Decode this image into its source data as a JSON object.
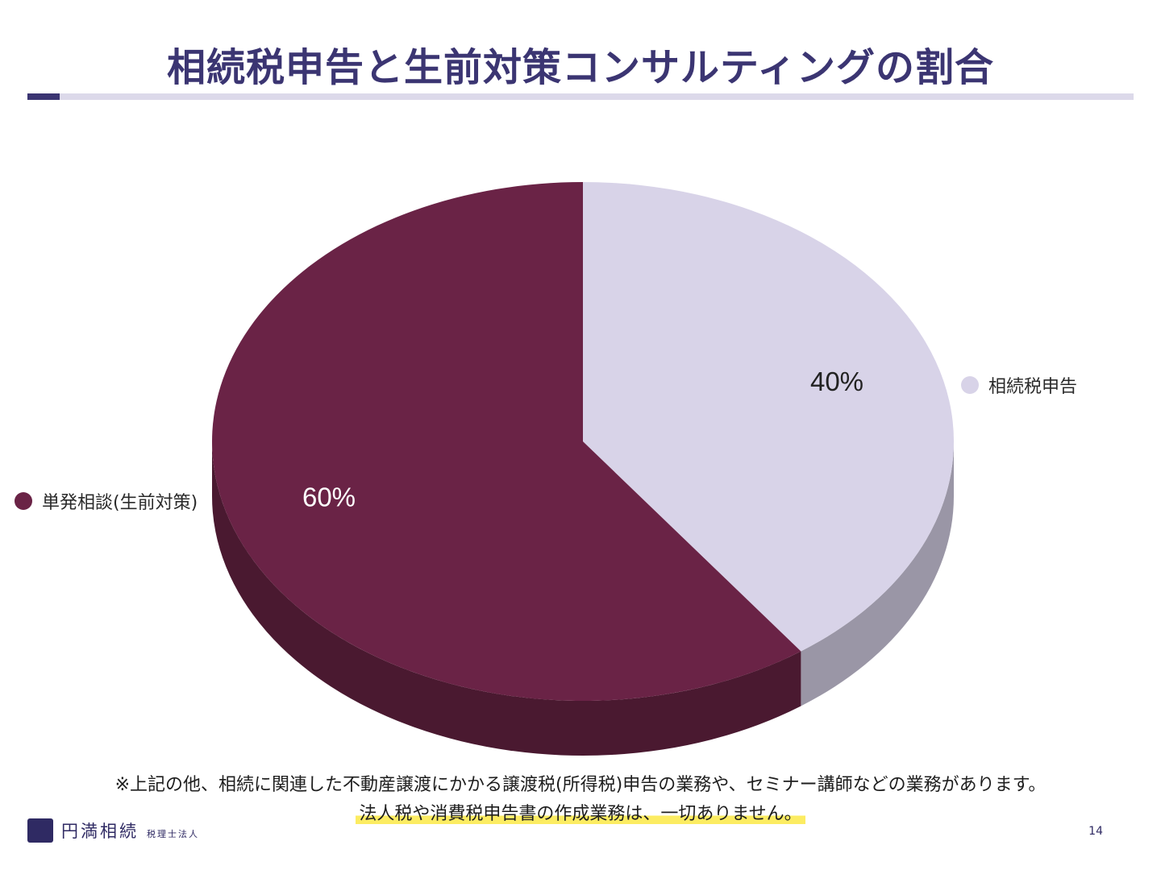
{
  "title": "相続税申告と生前対策コンサルティングの割合",
  "chart_data": {
    "type": "pie",
    "style": "3d",
    "categories": [
      "相続税申告",
      "単発相談(生前対策)"
    ],
    "values": [
      40,
      60
    ],
    "labels": [
      "40%",
      "60%"
    ],
    "colors": [
      "#d8d3e8",
      "#6a2346"
    ],
    "side_colors": [
      "#9a96a6",
      "#4a1930"
    ],
    "label_colors": [
      "#222222",
      "#ffffff"
    ],
    "legend": [
      {
        "label": "相続税申告",
        "color": "#d8d3e8",
        "position": "right"
      },
      {
        "label": "単発相談(生前対策)",
        "color": "#6a2346",
        "position": "left"
      }
    ]
  },
  "notes": {
    "line1": "※上記の他、相続に関連した不動産譲渡にかかる譲渡税(所得税)申告の業務や、セミナー講師などの業務があります。",
    "line2": "法人税や消費税申告書の作成業務は、一切ありません。"
  },
  "footer": {
    "logo_name": "円満相続",
    "logo_sub": "税理士法人",
    "page_number": "14"
  }
}
